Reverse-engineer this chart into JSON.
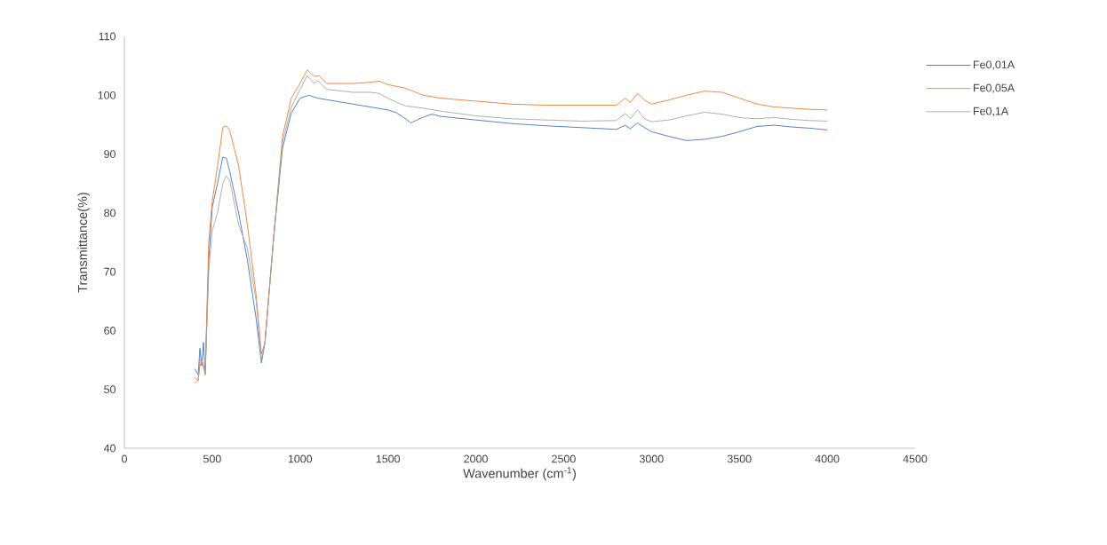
{
  "chart_data": {
    "type": "line",
    "xlabel": "Wavenumber (cm$^{-1}$)",
    "ylabel": "Transmittance(%)",
    "xlim": [
      0,
      4500
    ],
    "xticks": [
      0,
      500,
      1000,
      1500,
      2000,
      2500,
      3000,
      3500,
      4000,
      4500
    ],
    "ylim": [
      40,
      110
    ],
    "yticks": [
      40,
      50,
      60,
      70,
      80,
      90,
      100,
      110
    ],
    "grid": false,
    "legend": "right",
    "marker": "none",
    "line_style": "solid",
    "series": [
      {
        "name": "Fe0,01A",
        "color": "#4472c4",
        "x": [
          400,
          420,
          430,
          440,
          450,
          460,
          480,
          500,
          530,
          560,
          580,
          600,
          650,
          700,
          750,
          780,
          800,
          850,
          900,
          950,
          1000,
          1050,
          1100,
          1200,
          1300,
          1400,
          1500,
          1550,
          1600,
          1630,
          1680,
          1750,
          1800,
          2000,
          2200,
          2400,
          2600,
          2800,
          2850,
          2880,
          2920,
          2960,
          3000,
          3100,
          3200,
          3300,
          3400,
          3500,
          3600,
          3700,
          3800,
          3900,
          4000
        ],
        "values": [
          53.5,
          52.5,
          57,
          54,
          58,
          52.5,
          72,
          81,
          85,
          89.5,
          89.3,
          87,
          80,
          72,
          62,
          54.5,
          58,
          76,
          91,
          97,
          99.5,
          100,
          99.5,
          99,
          98.5,
          98,
          97.5,
          97,
          96,
          95.3,
          96,
          96.8,
          96.4,
          95.8,
          95.2,
          94.8,
          94.5,
          94.2,
          94.9,
          94.3,
          95.3,
          94.5,
          93.8,
          93,
          92.3,
          92.5,
          93,
          93.8,
          94.7,
          94.9,
          94.6,
          94.4,
          94.1
        ]
      },
      {
        "name": "Fe0,05A",
        "color": "#ed7d31",
        "x": [
          400,
          420,
          430,
          440,
          460,
          480,
          500,
          530,
          560,
          580,
          600,
          650,
          700,
          750,
          780,
          800,
          850,
          900,
          950,
          1000,
          1040,
          1080,
          1110,
          1150,
          1300,
          1400,
          1450,
          1500,
          1600,
          1700,
          1800,
          2000,
          2200,
          2400,
          2600,
          2800,
          2850,
          2880,
          2920,
          2960,
          3000,
          3100,
          3200,
          3300,
          3400,
          3500,
          3600,
          3700,
          3800,
          3900,
          4000
        ],
        "values": [
          52,
          51.5,
          55,
          55,
          53,
          75,
          82,
          88,
          94.5,
          94.8,
          94,
          88,
          78,
          66,
          56,
          58,
          76,
          93,
          99.5,
          102,
          104.3,
          103.2,
          103.3,
          102,
          102,
          102.2,
          102.4,
          101.8,
          101.2,
          100,
          99.5,
          99,
          98.5,
          98.3,
          98.3,
          98.3,
          99.5,
          98.8,
          100.3,
          99.2,
          98.5,
          99.2,
          100,
          100.7,
          100.5,
          99.5,
          98.5,
          98,
          97.8,
          97.6,
          97.5
        ]
      },
      {
        "name": "Fe0,1A",
        "color": "#a5a5a5",
        "x": [
          400,
          420,
          430,
          440,
          460,
          480,
          500,
          530,
          560,
          580,
          600,
          650,
          700,
          750,
          780,
          800,
          850,
          900,
          950,
          1000,
          1040,
          1080,
          1100,
          1150,
          1300,
          1400,
          1450,
          1500,
          1550,
          1600,
          1700,
          1800,
          2000,
          2200,
          2400,
          2600,
          2800,
          2850,
          2880,
          2920,
          2960,
          3000,
          3100,
          3200,
          3300,
          3400,
          3500,
          3600,
          3700,
          3800,
          3900,
          4000
        ],
        "values": [
          51,
          51.5,
          54,
          55,
          52.5,
          70,
          77,
          80,
          85,
          86.3,
          85.5,
          78,
          74,
          65,
          55,
          58,
          76,
          92,
          98,
          101,
          103.3,
          102,
          102.5,
          101,
          100.5,
          100.5,
          100.3,
          99.5,
          98.8,
          98.2,
          97.8,
          97.3,
          96.5,
          96,
          95.8,
          95.6,
          95.7,
          96.9,
          96,
          97.5,
          96,
          95.5,
          95.8,
          96.5,
          97.1,
          96.8,
          96.2,
          96,
          96.2,
          95.9,
          95.7,
          95.6
        ]
      }
    ]
  }
}
